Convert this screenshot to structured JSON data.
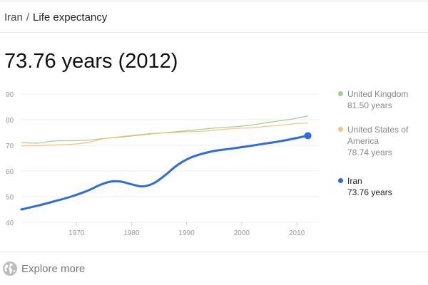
{
  "breadcrumb": {
    "country": "Iran",
    "separator": "/",
    "topic": "Life expectancy"
  },
  "headline": "73.76 years (2012)",
  "legend": [
    {
      "name": "United Kingdom",
      "value": "81.50 years",
      "color": "#9ccf8c"
    },
    {
      "name": "United States of America",
      "value": "78.74 years",
      "color": "#f7c27a"
    },
    {
      "name": "Iran",
      "value": "73.76 years",
      "color": "#2d6be4"
    }
  ],
  "explore": {
    "label": "Explore more",
    "icon": "globe-icon"
  },
  "chart_data": {
    "type": "line",
    "title": "",
    "xlabel": "",
    "ylabel": "",
    "xlim": [
      1960,
      2014
    ],
    "ylim": [
      40,
      90
    ],
    "x_ticks": [
      1970,
      1980,
      1990,
      2000,
      2010
    ],
    "y_ticks": [
      40,
      50,
      60,
      70,
      80,
      90
    ],
    "grid": true,
    "legend_position": "right",
    "series": [
      {
        "name": "United Kingdom",
        "color": "#9ccf8c",
        "x": [
          1960,
          1963,
          1966,
          1969,
          1972,
          1975,
          1978,
          1981,
          1984,
          1987,
          1990,
          1993,
          1996,
          1999,
          2002,
          2005,
          2008,
          2010,
          2012
        ],
        "y": [
          71.1,
          70.9,
          71.7,
          71.8,
          72.0,
          72.7,
          73.2,
          73.9,
          74.5,
          75.1,
          75.7,
          76.3,
          76.9,
          77.3,
          78.0,
          79.0,
          79.9,
          80.6,
          81.5
        ]
      },
      {
        "name": "United States of America",
        "color": "#f7c27a",
        "x": [
          1960,
          1963,
          1966,
          1969,
          1972,
          1975,
          1978,
          1981,
          1984,
          1987,
          1990,
          1993,
          1996,
          1999,
          2002,
          2005,
          2008,
          2010,
          2012
        ],
        "y": [
          69.8,
          69.9,
          70.2,
          70.4,
          71.1,
          72.6,
          73.4,
          74.1,
          74.7,
          74.9,
          75.3,
          75.5,
          76.1,
          76.6,
          76.9,
          77.5,
          78.0,
          78.5,
          78.74
        ]
      },
      {
        "name": "Iran",
        "color": "#2d6be4",
        "x": [
          1960,
          1963,
          1966,
          1969,
          1972,
          1974,
          1976,
          1978,
          1980,
          1982,
          1984,
          1986,
          1988,
          1990,
          1992,
          1995,
          1998,
          2001,
          2004,
          2007,
          2010,
          2012
        ],
        "y": [
          45.0,
          46.5,
          48.2,
          50.0,
          52.3,
          54.3,
          55.8,
          55.9,
          54.8,
          54.0,
          55.2,
          58.2,
          61.8,
          64.5,
          66.2,
          67.8,
          68.7,
          69.6,
          70.6,
          71.6,
          72.9,
          73.76
        ]
      }
    ]
  }
}
